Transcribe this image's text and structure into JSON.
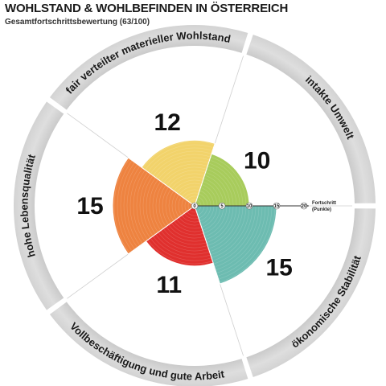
{
  "header": {
    "title": "WOHLSTAND & WOHLBEFINDEN IN ÖSTERREICH",
    "subtitle": "Gesamtfortschrittsbewertung (63/100)"
  },
  "chart_data": {
    "type": "polar_area",
    "max": 20,
    "ticks": [
      0,
      5,
      10,
      15,
      20
    ],
    "axis_label_line1": "Fortschritt",
    "axis_label_line2": "(Punkte)",
    "segments": [
      {
        "name": "intakte Umwelt",
        "value": 10,
        "color": "#a8cc5c"
      },
      {
        "name": "ökonomische Stabilität",
        "value": 15,
        "color": "#6dbcb1"
      },
      {
        "name": "Vollbeschäftigung und gute Arbeit",
        "value": 11,
        "color": "#e0302e"
      },
      {
        "name": "hohe Lebensqualität",
        "value": 15,
        "color": "#ee8340"
      },
      {
        "name": "fair verteilter materieller Wohlstand",
        "value": 12,
        "color": "#f2d36b"
      }
    ]
  }
}
